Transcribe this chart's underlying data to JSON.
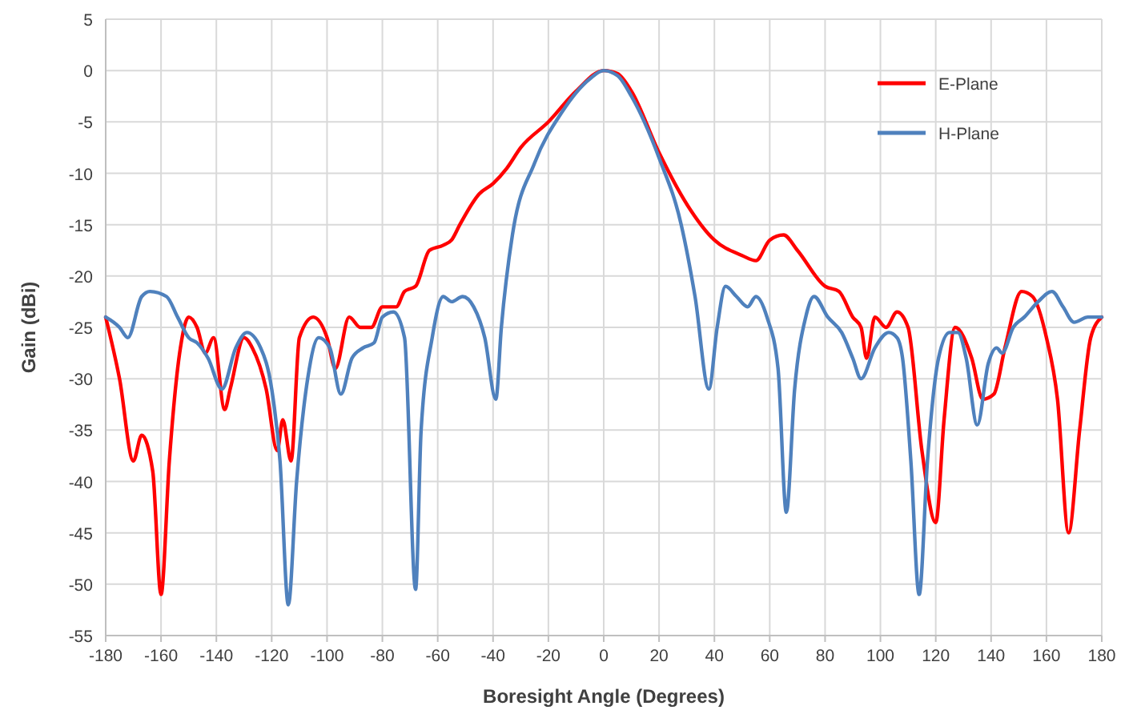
{
  "chart_data": {
    "type": "line",
    "xlabel": "Boresight Angle (Degrees)",
    "ylabel": "Gain (dBi)",
    "xlim": [
      -180,
      180
    ],
    "xticks": [
      -180,
      -160,
      -140,
      -120,
      -100,
      -80,
      -60,
      -40,
      -20,
      0,
      20,
      40,
      60,
      80,
      100,
      120,
      140,
      160,
      180
    ],
    "ylim": [
      -55,
      5
    ],
    "yticks": [
      -55,
      -50,
      -45,
      -40,
      -35,
      -30,
      -25,
      -20,
      -15,
      -10,
      -5,
      0,
      5
    ],
    "grid": true,
    "legend": "top right",
    "marker": "none",
    "line_style": "solid",
    "series": [
      {
        "name": "E-Plane",
        "color": "#ff0000",
        "x": [
          -180,
          -175,
          -170,
          -167,
          -163,
          -160,
          -157,
          -153,
          -150,
          -147,
          -144,
          -141,
          -137,
          -135,
          -130,
          -127,
          -122,
          -118,
          -116,
          -113,
          -110,
          -105,
          -100,
          -97,
          -92,
          -88,
          -84,
          -80,
          -75,
          -72,
          -68,
          -63,
          -58,
          -55,
          -52,
          -45,
          -40,
          -35,
          -30,
          -20,
          -10,
          0,
          5,
          10,
          20,
          30,
          40,
          50,
          55,
          60,
          65,
          70,
          80,
          85,
          90,
          93,
          95,
          98,
          102,
          106,
          110,
          115,
          120,
          123,
          127,
          133,
          137,
          141,
          145,
          151,
          155,
          160,
          164,
          168,
          172,
          176,
          180
        ],
        "values": [
          -24,
          -30,
          -38,
          -35.5,
          -39,
          -51,
          -38,
          -27,
          -24,
          -25,
          -27.5,
          -26,
          -33,
          -31,
          -26,
          -27,
          -31,
          -37,
          -34,
          -38,
          -26,
          -24,
          -26,
          -29,
          -24,
          -25,
          -25,
          -23,
          -23,
          -21.5,
          -21,
          -17.5,
          -17,
          -16.5,
          -15,
          -12,
          -11,
          -9.5,
          -7.5,
          -5,
          -2,
          0,
          -0.3,
          -2,
          -8,
          -13,
          -16.5,
          -18,
          -18.5,
          -16.5,
          -16,
          -17.5,
          -21,
          -21.5,
          -24,
          -25,
          -28,
          -24,
          -25,
          -23.5,
          -25,
          -37,
          -44,
          -34,
          -25,
          -28,
          -32,
          -31.5,
          -27,
          -21.5,
          -22,
          -26,
          -32,
          -45,
          -35,
          -26,
          -24
        ]
      },
      {
        "name": "H-Plane",
        "color": "#4f81bd",
        "x": [
          -180,
          -175,
          -172,
          -167,
          -164,
          -158,
          -154,
          -150,
          -147,
          -143,
          -138,
          -133,
          -129,
          -124,
          -120,
          -117,
          -114,
          -111,
          -107,
          -103,
          -99,
          -95,
          -91,
          -87,
          -83,
          -80,
          -76,
          -72,
          -68,
          -66,
          -62,
          -58,
          -55,
          -51,
          -47,
          -43,
          -39,
          -37,
          -33,
          -25,
          -15,
          -5,
          0,
          5,
          10,
          20,
          28,
          33,
          38,
          41,
          44,
          48,
          52,
          55,
          59,
          63,
          66,
          69,
          73,
          76,
          81,
          86,
          90,
          93,
          98,
          103,
          106,
          108,
          111,
          114,
          117,
          121,
          125,
          128,
          131,
          135,
          139,
          142,
          144,
          148,
          152,
          157,
          162,
          166,
          170,
          175,
          180
        ],
        "values": [
          -24,
          -25,
          -26,
          -22,
          -21.5,
          -22,
          -24,
          -26,
          -26.5,
          -28,
          -31,
          -27,
          -25.5,
          -27,
          -31,
          -38,
          -52,
          -40,
          -30,
          -26,
          -27,
          -31.5,
          -28,
          -27,
          -26.5,
          -24,
          -23.5,
          -26,
          -50.5,
          -35,
          -26,
          -22,
          -22.5,
          -22,
          -23,
          -26,
          -32,
          -25,
          -16,
          -9,
          -4,
          -0.8,
          0,
          -0.5,
          -2.5,
          -8.5,
          -15,
          -22,
          -31,
          -25,
          -21,
          -22,
          -23,
          -22,
          -24,
          -29,
          -43,
          -31,
          -24,
          -22,
          -24,
          -25.5,
          -28,
          -30,
          -27,
          -25.5,
          -26,
          -28,
          -38,
          -51,
          -38,
          -28,
          -25.5,
          -25.5,
          -28,
          -34.5,
          -28.5,
          -27,
          -27.5,
          -25,
          -24,
          -22.5,
          -21.5,
          -23,
          -24.5,
          -24,
          -24
        ]
      }
    ]
  }
}
